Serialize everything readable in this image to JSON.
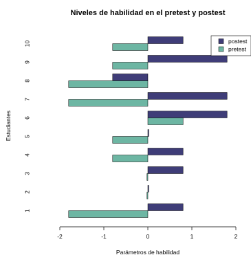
{
  "chart_data": {
    "type": "bar",
    "orientation": "horizontal",
    "title": "Niveles de habilidad en el pretest y postest",
    "xlabel": "Parámetros de habilidad",
    "ylabel": "Estudiantes",
    "xlim": [
      -2,
      2
    ],
    "xticks": [
      "-2",
      "-1",
      "0",
      "1",
      "2"
    ],
    "categories": [
      "1",
      "2",
      "3",
      "4",
      "5",
      "6",
      "7",
      "8",
      "9",
      "10"
    ],
    "series": [
      {
        "name": "postest",
        "color": "#3f3d78",
        "values": [
          0.8,
          0.02,
          0.8,
          0.8,
          0.02,
          1.8,
          1.8,
          -0.8,
          1.8,
          0.8
        ]
      },
      {
        "name": "pretest",
        "color": "#6db6a3",
        "values": [
          -1.8,
          -0.02,
          -0.02,
          -0.8,
          -0.8,
          0.8,
          -1.8,
          -1.8,
          -0.8,
          -0.8
        ]
      }
    ],
    "legend": {
      "position": "top-right",
      "entries": [
        "postest",
        "pretest"
      ]
    },
    "grid": false
  }
}
